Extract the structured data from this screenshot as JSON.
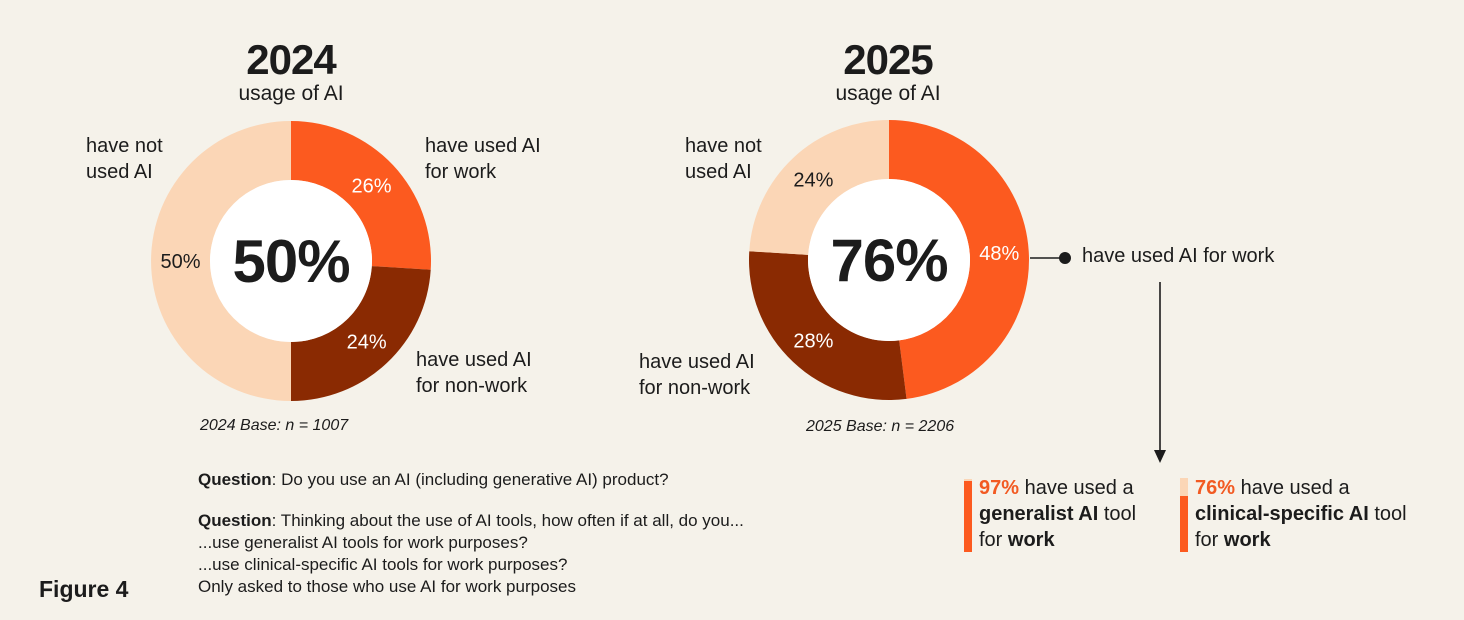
{
  "colors": {
    "work": "#fc5a1f",
    "non_work": "#8a2a02",
    "not_used": "#fbd6b6",
    "center": "#ffffff",
    "accent": "#f25a22"
  },
  "chart_data": [
    {
      "type": "pie",
      "title": "2024",
      "subtitle": "usage of AI",
      "center_value": "50%",
      "slices": [
        {
          "label": "have used AI for work",
          "value": 26,
          "pct_label": "26%"
        },
        {
          "label": "have used AI for non-work",
          "value": 24,
          "pct_label": "24%"
        },
        {
          "label": "have not used AI",
          "value": 50,
          "pct_label": "50%"
        }
      ],
      "base_note": "2024 Base: n = 1007"
    },
    {
      "type": "pie",
      "title": "2025",
      "subtitle": "usage of AI",
      "center_value": "76%",
      "slices": [
        {
          "label": "have used AI for work",
          "value": 48,
          "pct_label": "48%"
        },
        {
          "label": "have used AI for non-work",
          "value": 28,
          "pct_label": "28%"
        },
        {
          "label": "have not used AI",
          "value": 24,
          "pct_label": "24%"
        }
      ],
      "base_note": "2025 Base: n = 2206"
    }
  ],
  "labels_2024": {
    "not_used_1": "have not",
    "not_used_2": "used AI",
    "work_1": "have used AI",
    "work_2": "for work",
    "nonwork_1": "have used AI",
    "nonwork_2": "for non-work"
  },
  "labels_2025": {
    "not_used_1": "have not",
    "not_used_2": "used AI",
    "work": "have used AI for work",
    "nonwork_1": "have used AI",
    "nonwork_2": "for non-work"
  },
  "questions": {
    "q1_label": "Question",
    "q1_text": ": Do you use an AI (including generative AI) product?",
    "q2_label": "Question",
    "q2_text": ": Thinking about the use of AI tools, how often if at all, do you...",
    "q2_line2": "...use generalist AI tools for work purposes?",
    "q2_line3": "...use clinical-specific AI tools for work purposes?",
    "q2_line4": "Only asked to those who use AI for work purposes"
  },
  "figure_label": "Figure 4",
  "breakdown": [
    {
      "pct": "97%",
      "value": 97,
      "line1_rest": " have used a",
      "line2_bold": "generalist AI",
      "line2_rest": " tool",
      "line3_pre": "for ",
      "line3_bold": "work"
    },
    {
      "pct": "76%",
      "value": 76,
      "line1_rest": " have used a",
      "line2_bold": "clinical-specific AI",
      "line2_rest": " tool",
      "line3_pre": "for ",
      "line3_bold": "work"
    }
  ]
}
